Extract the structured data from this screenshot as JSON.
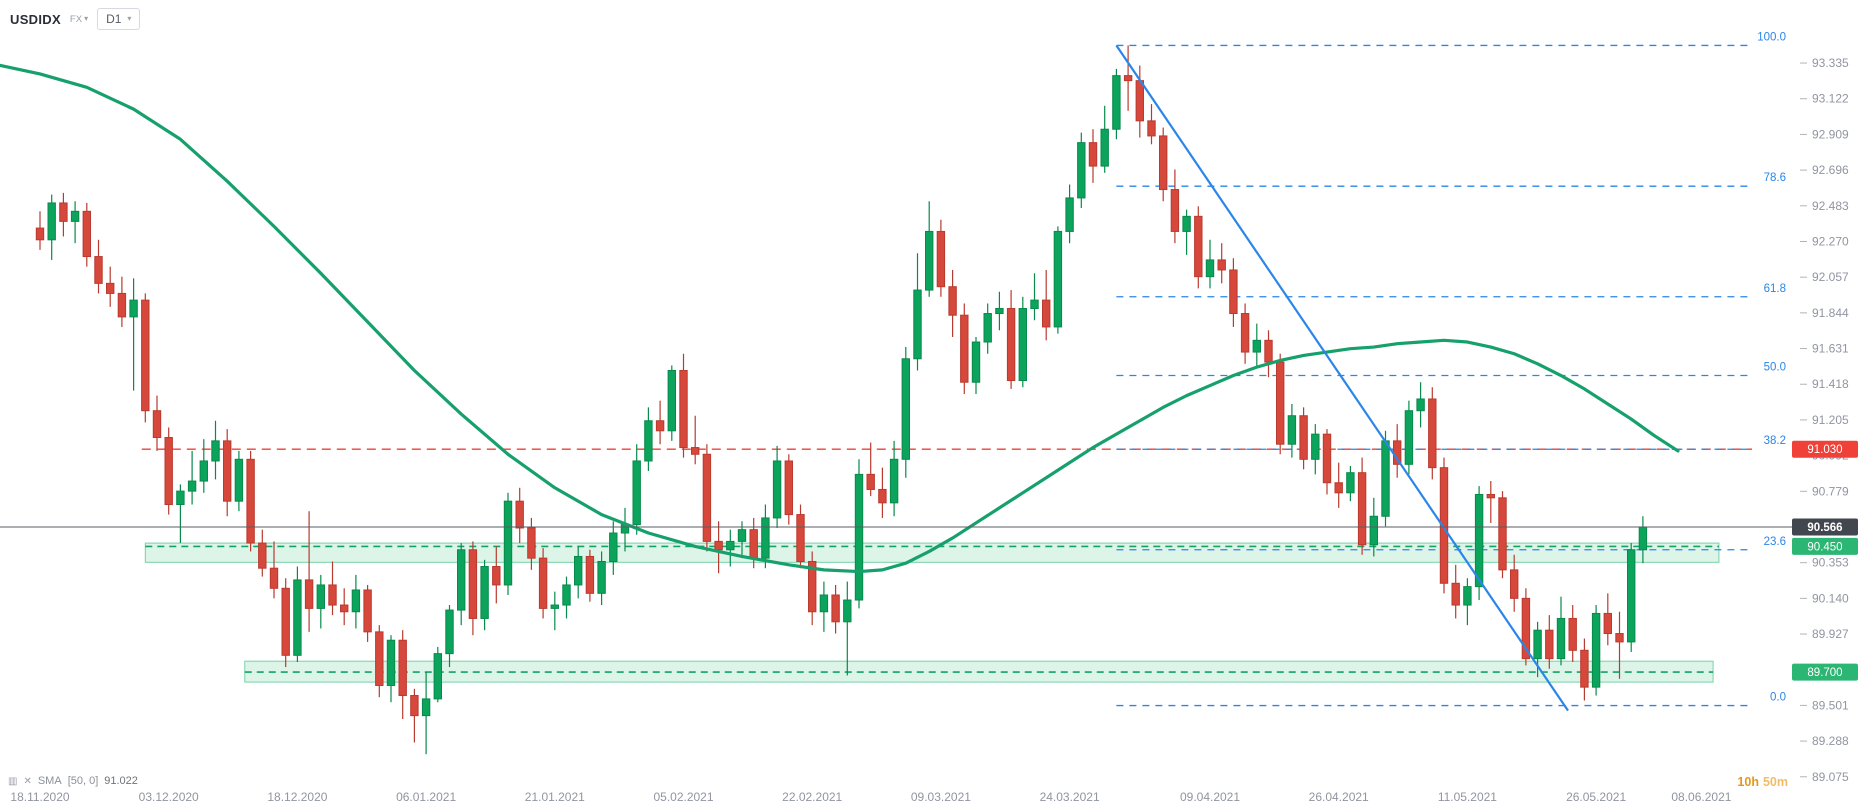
{
  "header": {
    "symbol": "USDIDX",
    "market": "FX",
    "timeframe": "D1"
  },
  "legend": {
    "indicator": "SMA",
    "params": "[50, 0]",
    "value": "91.022"
  },
  "countdown": {
    "hours": "10h",
    "minutes": "50m"
  },
  "chart_data": {
    "type": "candlestick",
    "symbol": "USDIDX",
    "timeframe": "D1",
    "ylim": [
      89.02,
      93.58
    ],
    "price_axis_labels": [
      "93.335",
      "93.122",
      "92.909",
      "92.696",
      "92.483",
      "92.270",
      "92.057",
      "91.844",
      "91.631",
      "91.418",
      "91.205",
      "90.992",
      "90.779",
      "90.566",
      "90.353",
      "90.140",
      "89.927",
      "89.714",
      "89.501",
      "89.288",
      "89.075"
    ],
    "date_labels": [
      {
        "text": "18.11.2020",
        "i": 0
      },
      {
        "text": "03.12.2020",
        "i": 11
      },
      {
        "text": "18.12.2020",
        "i": 22
      },
      {
        "text": "06.01.2021",
        "i": 33
      },
      {
        "text": "21.01.2021",
        "i": 44
      },
      {
        "text": "05.02.2021",
        "i": 55
      },
      {
        "text": "22.02.2021",
        "i": 66
      },
      {
        "text": "09.03.2021",
        "i": 77
      },
      {
        "text": "24.03.2021",
        "i": 88
      },
      {
        "text": "09.04.2021",
        "i": 100
      },
      {
        "text": "26.04.2021",
        "i": 111
      },
      {
        "text": "11.05.2021",
        "i": 122
      },
      {
        "text": "26.05.2021",
        "i": 133
      },
      {
        "text": "08.06.2021",
        "i": 142
      }
    ],
    "candles": [
      [
        92.35,
        92.45,
        92.22,
        92.28
      ],
      [
        92.28,
        92.55,
        92.16,
        92.5
      ],
      [
        92.5,
        92.56,
        92.3,
        92.39
      ],
      [
        92.39,
        92.51,
        92.26,
        92.45
      ],
      [
        92.45,
        92.5,
        92.12,
        92.18
      ],
      [
        92.18,
        92.28,
        91.96,
        92.02
      ],
      [
        92.02,
        92.12,
        91.88,
        91.96
      ],
      [
        91.96,
        92.06,
        91.76,
        91.82
      ],
      [
        91.82,
        92.05,
        91.38,
        91.92
      ],
      [
        91.92,
        91.96,
        91.19,
        91.26
      ],
      [
        91.26,
        91.35,
        91.02,
        91.1
      ],
      [
        91.1,
        91.16,
        90.64,
        90.7
      ],
      [
        90.7,
        90.82,
        90.47,
        90.78
      ],
      [
        90.78,
        91.02,
        90.7,
        90.84
      ],
      [
        90.84,
        91.09,
        90.77,
        90.96
      ],
      [
        90.96,
        91.2,
        90.85,
        91.08
      ],
      [
        91.08,
        91.15,
        90.63,
        90.72
      ],
      [
        90.72,
        91.02,
        90.66,
        90.97
      ],
      [
        90.97,
        91.02,
        90.42,
        90.47
      ],
      [
        90.47,
        90.55,
        90.27,
        90.32
      ],
      [
        90.32,
        90.48,
        90.14,
        90.2
      ],
      [
        90.2,
        90.26,
        89.73,
        89.8
      ],
      [
        89.8,
        90.33,
        89.76,
        90.25
      ],
      [
        90.25,
        90.66,
        89.94,
        90.08
      ],
      [
        90.08,
        90.28,
        89.96,
        90.22
      ],
      [
        90.22,
        90.36,
        90.04,
        90.1
      ],
      [
        90.1,
        90.2,
        89.98,
        90.06
      ],
      [
        90.06,
        90.28,
        89.96,
        90.19
      ],
      [
        90.19,
        90.22,
        89.88,
        89.94
      ],
      [
        89.94,
        89.98,
        89.55,
        89.62
      ],
      [
        89.62,
        89.92,
        89.52,
        89.89
      ],
      [
        89.89,
        89.95,
        89.42,
        89.56
      ],
      [
        89.56,
        89.6,
        89.28,
        89.44
      ],
      [
        89.44,
        89.7,
        89.21,
        89.54
      ],
      [
        89.54,
        89.85,
        89.52,
        89.81
      ],
      [
        89.81,
        90.1,
        89.73,
        90.07
      ],
      [
        90.07,
        90.47,
        89.98,
        90.43
      ],
      [
        90.43,
        90.48,
        89.92,
        90.02
      ],
      [
        90.02,
        90.37,
        89.95,
        90.33
      ],
      [
        90.33,
        90.45,
        90.11,
        90.22
      ],
      [
        90.22,
        90.77,
        90.16,
        90.72
      ],
      [
        90.72,
        90.8,
        90.47,
        90.56
      ],
      [
        90.56,
        90.62,
        90.31,
        90.38
      ],
      [
        90.38,
        90.44,
        90.02,
        90.08
      ],
      [
        90.08,
        90.18,
        89.95,
        90.1
      ],
      [
        90.1,
        90.27,
        90.02,
        90.22
      ],
      [
        90.22,
        90.45,
        90.14,
        90.39
      ],
      [
        90.39,
        90.43,
        90.12,
        90.17
      ],
      [
        90.17,
        90.42,
        90.1,
        90.36
      ],
      [
        90.36,
        90.6,
        90.28,
        90.53
      ],
      [
        90.53,
        90.68,
        90.42,
        90.58
      ],
      [
        90.58,
        91.06,
        90.52,
        90.96
      ],
      [
        90.96,
        91.28,
        90.9,
        91.2
      ],
      [
        91.2,
        91.32,
        91.06,
        91.14
      ],
      [
        91.14,
        91.53,
        91.08,
        91.5
      ],
      [
        91.5,
        91.6,
        90.98,
        91.04
      ],
      [
        91.04,
        91.23,
        90.94,
        91.0
      ],
      [
        91.0,
        91.06,
        90.42,
        90.48
      ],
      [
        90.48,
        90.6,
        90.29,
        90.43
      ],
      [
        90.43,
        90.55,
        90.33,
        90.48
      ],
      [
        90.48,
        90.6,
        90.38,
        90.55
      ],
      [
        90.55,
        90.62,
        90.32,
        90.38
      ],
      [
        90.38,
        90.7,
        90.32,
        90.62
      ],
      [
        90.62,
        91.05,
        90.56,
        90.96
      ],
      [
        90.96,
        91.0,
        90.58,
        90.64
      ],
      [
        90.64,
        90.7,
        90.32,
        90.36
      ],
      [
        90.36,
        90.42,
        89.98,
        90.06
      ],
      [
        90.06,
        90.24,
        89.94,
        90.16
      ],
      [
        90.16,
        90.22,
        89.93,
        90.0
      ],
      [
        90.0,
        90.24,
        89.68,
        90.13
      ],
      [
        90.13,
        90.97,
        90.08,
        90.88
      ],
      [
        90.88,
        91.07,
        90.75,
        90.79
      ],
      [
        90.79,
        90.92,
        90.62,
        90.71
      ],
      [
        90.71,
        91.08,
        90.63,
        90.97
      ],
      [
        90.97,
        91.64,
        90.86,
        91.57
      ],
      [
        91.57,
        92.2,
        91.5,
        91.98
      ],
      [
        91.98,
        92.51,
        91.94,
        92.33
      ],
      [
        92.33,
        92.4,
        91.94,
        92.0
      ],
      [
        92.0,
        92.1,
        91.7,
        91.83
      ],
      [
        91.83,
        91.9,
        91.36,
        91.43
      ],
      [
        91.43,
        91.7,
        91.36,
        91.67
      ],
      [
        91.67,
        91.9,
        91.6,
        91.84
      ],
      [
        91.84,
        91.97,
        91.74,
        91.87
      ],
      [
        91.87,
        91.98,
        91.39,
        91.44
      ],
      [
        91.44,
        91.94,
        91.4,
        91.87
      ],
      [
        91.87,
        92.08,
        91.8,
        91.92
      ],
      [
        91.92,
        92.1,
        91.68,
        91.76
      ],
      [
        91.76,
        92.36,
        91.72,
        92.33
      ],
      [
        92.33,
        92.61,
        92.26,
        92.53
      ],
      [
        92.53,
        92.92,
        92.47,
        92.86
      ],
      [
        92.86,
        92.94,
        92.62,
        92.72
      ],
      [
        92.72,
        93.08,
        92.68,
        92.94
      ],
      [
        92.94,
        93.3,
        92.88,
        93.26
      ],
      [
        93.26,
        93.44,
        93.05,
        93.23
      ],
      [
        93.23,
        93.32,
        92.89,
        92.99
      ],
      [
        92.99,
        93.09,
        92.85,
        92.9
      ],
      [
        92.9,
        92.95,
        92.51,
        92.58
      ],
      [
        92.58,
        92.7,
        92.26,
        92.33
      ],
      [
        92.33,
        92.46,
        92.19,
        92.42
      ],
      [
        92.42,
        92.48,
        91.99,
        92.06
      ],
      [
        92.06,
        92.28,
        91.99,
        92.16
      ],
      [
        92.16,
        92.26,
        92.02,
        92.1
      ],
      [
        92.1,
        92.17,
        91.76,
        91.84
      ],
      [
        91.84,
        91.9,
        91.54,
        91.61
      ],
      [
        91.61,
        91.78,
        91.52,
        91.68
      ],
      [
        91.68,
        91.74,
        91.46,
        91.55
      ],
      [
        91.55,
        91.6,
        91.0,
        91.06
      ],
      [
        91.06,
        91.3,
        90.98,
        91.23
      ],
      [
        91.23,
        91.28,
        90.91,
        90.97
      ],
      [
        90.97,
        91.18,
        90.88,
        91.12
      ],
      [
        91.12,
        91.15,
        90.76,
        90.83
      ],
      [
        90.83,
        90.95,
        90.68,
        90.77
      ],
      [
        90.77,
        90.93,
        90.72,
        90.89
      ],
      [
        90.89,
        90.98,
        90.4,
        90.46
      ],
      [
        90.46,
        90.74,
        90.39,
        90.63
      ],
      [
        90.63,
        91.14,
        90.57,
        91.08
      ],
      [
        91.08,
        91.18,
        90.86,
        90.94
      ],
      [
        90.94,
        91.32,
        90.88,
        91.26
      ],
      [
        91.26,
        91.43,
        91.16,
        91.33
      ],
      [
        91.33,
        91.4,
        90.85,
        90.92
      ],
      [
        90.92,
        90.98,
        90.17,
        90.23
      ],
      [
        90.23,
        90.34,
        90.02,
        90.1
      ],
      [
        90.1,
        90.26,
        89.98,
        90.21
      ],
      [
        90.21,
        90.81,
        90.13,
        90.76
      ],
      [
        90.76,
        90.84,
        90.59,
        90.74
      ],
      [
        90.74,
        90.78,
        90.26,
        90.31
      ],
      [
        90.31,
        90.4,
        90.06,
        90.14
      ],
      [
        90.14,
        90.2,
        89.74,
        89.78
      ],
      [
        89.78,
        90.0,
        89.67,
        89.95
      ],
      [
        89.95,
        90.04,
        89.72,
        89.78
      ],
      [
        89.78,
        90.15,
        89.74,
        90.02
      ],
      [
        90.02,
        90.1,
        89.76,
        89.83
      ],
      [
        89.83,
        89.9,
        89.53,
        89.61
      ],
      [
        89.61,
        90.1,
        89.56,
        90.05
      ],
      [
        90.05,
        90.17,
        89.86,
        89.93
      ],
      [
        89.93,
        90.06,
        89.66,
        89.88
      ],
      [
        89.88,
        90.47,
        89.82,
        90.43
      ],
      [
        90.43,
        90.63,
        90.35,
        90.566
      ]
    ],
    "sma50_points": [
      [
        -4,
        93.33
      ],
      [
        0,
        93.27
      ],
      [
        4,
        93.19
      ],
      [
        8,
        93.06
      ],
      [
        12,
        92.88
      ],
      [
        16,
        92.63
      ],
      [
        20,
        92.36
      ],
      [
        24,
        92.08
      ],
      [
        28,
        91.79
      ],
      [
        32,
        91.5
      ],
      [
        36,
        91.24
      ],
      [
        40,
        91.0
      ],
      [
        44,
        90.8
      ],
      [
        48,
        90.64
      ],
      [
        52,
        90.53
      ],
      [
        56,
        90.45
      ],
      [
        60,
        90.39
      ],
      [
        64,
        90.34
      ],
      [
        67,
        90.31
      ],
      [
        70,
        90.3
      ],
      [
        72,
        90.31
      ],
      [
        74,
        90.35
      ],
      [
        76,
        90.42
      ],
      [
        78,
        90.5
      ],
      [
        80,
        90.59
      ],
      [
        82,
        90.68
      ],
      [
        84,
        90.77
      ],
      [
        86,
        90.86
      ],
      [
        88,
        90.95
      ],
      [
        90,
        91.04
      ],
      [
        92,
        91.12
      ],
      [
        94,
        91.2
      ],
      [
        96,
        91.28
      ],
      [
        98,
        91.35
      ],
      [
        100,
        91.41
      ],
      [
        102,
        91.47
      ],
      [
        104,
        91.52
      ],
      [
        106,
        91.56
      ],
      [
        108,
        91.59
      ],
      [
        110,
        91.61
      ],
      [
        112,
        91.63
      ],
      [
        114,
        91.64
      ],
      [
        116,
        91.66
      ],
      [
        118,
        91.67
      ],
      [
        120,
        91.68
      ],
      [
        122,
        91.67
      ],
      [
        124,
        91.64
      ],
      [
        126,
        91.6
      ],
      [
        128,
        91.54
      ],
      [
        130,
        91.47
      ],
      [
        132,
        91.39
      ],
      [
        134,
        91.3
      ],
      [
        136,
        91.21
      ],
      [
        138,
        91.11
      ],
      [
        140,
        91.02
      ]
    ],
    "current_price": {
      "value": 90.566,
      "label": "90.566"
    },
    "alert_line": {
      "value": 91.03,
      "label": "91.030",
      "start_i": 8.7
    },
    "zones": [
      {
        "label": "90.450",
        "value": 90.45,
        "top": 90.47,
        "bottom": 90.355,
        "start_i": 9,
        "end_i": 143.5
      },
      {
        "label": "89.700",
        "value": 89.7,
        "top": 89.765,
        "bottom": 89.64,
        "start_i": 17.5,
        "end_i": 143
      }
    ],
    "fibonacci": {
      "start_i": 92,
      "levels": [
        {
          "label": "100.0",
          "value": 93.44
        },
        {
          "label": "78.6",
          "value": 92.6
        },
        {
          "label": "61.8",
          "value": 91.94
        },
        {
          "label": "50.0",
          "value": 91.47
        },
        {
          "label": "38.2",
          "value": 91.03
        },
        {
          "label": "23.6",
          "value": 90.43
        },
        {
          "label": "0.0",
          "value": 89.5
        }
      ]
    },
    "trendline": {
      "i1": 92,
      "p1": 93.44,
      "i2": 130.6,
      "p2": 89.47
    }
  },
  "colors": {
    "bull": "#0ca45c",
    "bull_border": "#078a4b",
    "bear": "#d6483b",
    "bear_border": "#b93a2e",
    "sma": "#16a06c",
    "fib": "#2a86e8",
    "alert": "#ef4137",
    "zone_fill": "rgba(24,178,107,0.15)",
    "zone_border": "rgba(24,178,107,0.55)",
    "zone_line": "#12a365",
    "zone_badge": "#2bb673",
    "price_badge": "#42464e",
    "price_line": "#5a5d63",
    "axis_text": "#9095a0",
    "countdown_orange": "#e5971c"
  }
}
